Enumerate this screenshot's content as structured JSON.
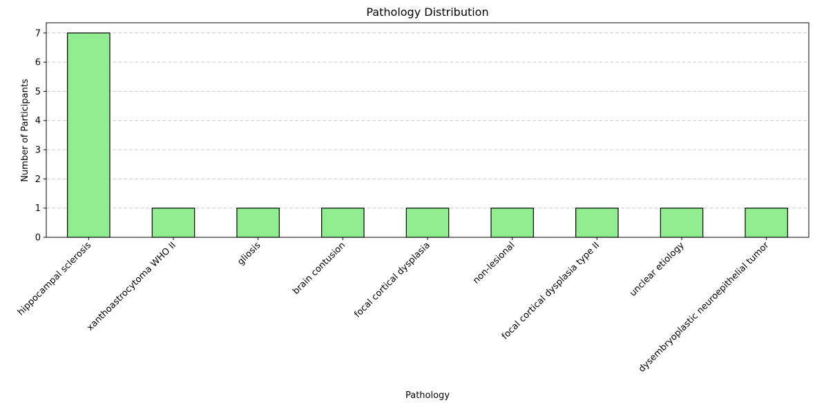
{
  "chart_data": {
    "type": "bar",
    "title": "Pathology Distribution",
    "xlabel": "Pathology",
    "ylabel": "Number of Participants",
    "categories": [
      "hippocampal sclerosis",
      "xanthoastrocytoma WHO II",
      "gliosis",
      "brain contusion",
      "focal cortical dysplasia",
      "non-lesional",
      "focal cortical dysplasia type II",
      "unclear etiology",
      "dysembryoplastic neuroepithelial tumor"
    ],
    "values": [
      7,
      1,
      1,
      1,
      1,
      1,
      1,
      1,
      1
    ],
    "ylim": [
      0,
      7.35
    ],
    "yticks": [
      0,
      1,
      2,
      3,
      4,
      5,
      6,
      7
    ],
    "grid": "y-dashed",
    "bar_color": "#90ee90",
    "bar_edge_color": "#000000"
  }
}
